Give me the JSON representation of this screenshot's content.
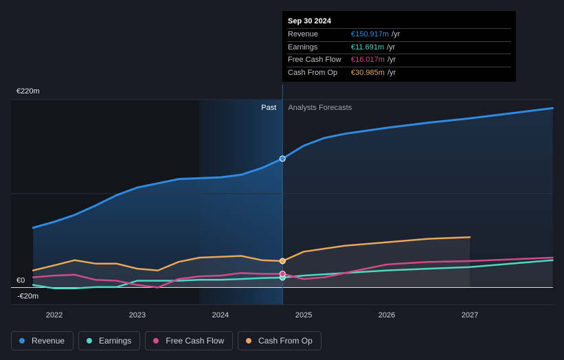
{
  "chart_data": {
    "type": "area",
    "title": "",
    "y_unit": "€",
    "y_ticks": [
      {
        "label": "€220m",
        "value": 220
      },
      {
        "label": "€0",
        "value": 0
      },
      {
        "label": "-€20m",
        "value": -20
      }
    ],
    "ylim": [
      -20,
      220
    ],
    "xlim": [
      "2021-09-30",
      "2027-12-31"
    ],
    "x_ticks": [
      {
        "label": "2022",
        "date": "2022-01-01"
      },
      {
        "label": "2023",
        "date": "2023-01-01"
      },
      {
        "label": "2024",
        "date": "2024-01-01"
      },
      {
        "label": "2025",
        "date": "2025-01-01"
      },
      {
        "label": "2026",
        "date": "2026-01-01"
      },
      {
        "label": "2027",
        "date": "2027-01-01"
      }
    ],
    "region_labels": {
      "past": "Past",
      "forecast": "Analysts Forecasts"
    },
    "divider_date": "2024-09-30",
    "past_highlight_start": "2023-09-30",
    "series": [
      {
        "name": "Revenue",
        "color": "#2f8ae0",
        "past": [
          [
            "2021-09-30",
            70
          ],
          [
            "2022-01-01",
            77
          ],
          [
            "2022-04-01",
            85
          ],
          [
            "2022-07-01",
            96
          ],
          [
            "2022-10-01",
            108
          ],
          [
            "2023-01-01",
            117
          ],
          [
            "2023-04-01",
            122
          ],
          [
            "2023-07-01",
            127
          ],
          [
            "2023-10-01",
            128
          ],
          [
            "2024-01-01",
            129
          ],
          [
            "2024-04-01",
            132
          ],
          [
            "2024-07-01",
            140
          ],
          [
            "2024-09-30",
            150.917
          ]
        ],
        "forecast": [
          [
            "2025-01-01",
            166
          ],
          [
            "2025-04-01",
            175
          ],
          [
            "2025-07-01",
            180
          ],
          [
            "2026-01-01",
            187
          ],
          [
            "2026-07-01",
            193
          ],
          [
            "2027-01-01",
            198
          ],
          [
            "2027-07-01",
            204
          ],
          [
            "2027-12-31",
            210
          ]
        ]
      },
      {
        "name": "Earnings",
        "color": "#4fd8c4",
        "past": [
          [
            "2021-09-30",
            3
          ],
          [
            "2022-01-01",
            -1
          ],
          [
            "2022-04-01",
            -1
          ],
          [
            "2022-07-01",
            0.5
          ],
          [
            "2022-10-01",
            0.5
          ],
          [
            "2023-01-01",
            8
          ],
          [
            "2023-04-01",
            8
          ],
          [
            "2023-07-01",
            8
          ],
          [
            "2023-10-01",
            9
          ],
          [
            "2024-01-01",
            9
          ],
          [
            "2024-04-01",
            10
          ],
          [
            "2024-07-01",
            11
          ],
          [
            "2024-09-30",
            11.691
          ]
        ],
        "forecast": [
          [
            "2025-01-01",
            14
          ],
          [
            "2025-07-01",
            17
          ],
          [
            "2026-01-01",
            20
          ],
          [
            "2026-07-01",
            22
          ],
          [
            "2027-01-01",
            24
          ],
          [
            "2027-07-01",
            28
          ],
          [
            "2027-12-31",
            32
          ]
        ]
      },
      {
        "name": "Free Cash Flow",
        "color": "#d04a8c",
        "past": [
          [
            "2021-09-30",
            12
          ],
          [
            "2022-01-01",
            14
          ],
          [
            "2022-04-01",
            15
          ],
          [
            "2022-07-01",
            9
          ],
          [
            "2022-10-01",
            8
          ],
          [
            "2023-01-01",
            3
          ],
          [
            "2023-04-01",
            0
          ],
          [
            "2023-07-01",
            10
          ],
          [
            "2023-10-01",
            13
          ],
          [
            "2024-01-01",
            14
          ],
          [
            "2024-04-01",
            17
          ],
          [
            "2024-07-01",
            16
          ],
          [
            "2024-09-30",
            16.017
          ]
        ],
        "forecast": [
          [
            "2025-01-01",
            10
          ],
          [
            "2025-04-01",
            12
          ],
          [
            "2025-07-01",
            17
          ],
          [
            "2026-01-01",
            27
          ],
          [
            "2026-07-01",
            30
          ],
          [
            "2027-01-01",
            31
          ],
          [
            "2027-07-01",
            33
          ],
          [
            "2027-12-31",
            35
          ]
        ]
      },
      {
        "name": "Cash From Op",
        "color": "#e8a75a",
        "past": [
          [
            "2021-09-30",
            20
          ],
          [
            "2022-01-01",
            26
          ],
          [
            "2022-04-01",
            32
          ],
          [
            "2022-07-01",
            28
          ],
          [
            "2022-10-01",
            28
          ],
          [
            "2023-01-01",
            22
          ],
          [
            "2023-04-01",
            20
          ],
          [
            "2023-07-01",
            30
          ],
          [
            "2023-10-01",
            35
          ],
          [
            "2024-01-01",
            36
          ],
          [
            "2024-04-01",
            37
          ],
          [
            "2024-07-01",
            32
          ],
          [
            "2024-09-30",
            30.985
          ]
        ],
        "forecast": [
          [
            "2025-01-01",
            42
          ],
          [
            "2025-07-01",
            49
          ],
          [
            "2026-01-01",
            53
          ],
          [
            "2026-07-01",
            57
          ],
          [
            "2027-01-01",
            59
          ]
        ]
      }
    ]
  },
  "tooltip": {
    "date": "Sep 30 2024",
    "rows": [
      {
        "label": "Revenue",
        "value": "€150.917m",
        "unit": "/yr",
        "color": "#2f8ae0"
      },
      {
        "label": "Earnings",
        "value": "€11.691m",
        "unit": "/yr",
        "color": "#4fd8c4"
      },
      {
        "label": "Free Cash Flow",
        "value": "€16.017m",
        "unit": "/yr",
        "color": "#d04a8c"
      },
      {
        "label": "Cash From Op",
        "value": "€30.985m",
        "unit": "/yr",
        "color": "#e8a75a"
      }
    ]
  },
  "legend": [
    {
      "label": "Revenue",
      "color": "#2f8ae0"
    },
    {
      "label": "Earnings",
      "color": "#4fd8c4"
    },
    {
      "label": "Free Cash Flow",
      "color": "#d04a8c"
    },
    {
      "label": "Cash From Op",
      "color": "#e8a75a"
    }
  ]
}
